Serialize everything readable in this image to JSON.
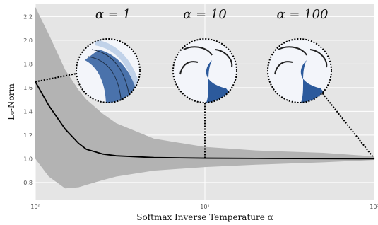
{
  "chart_data": {
    "type": "line",
    "x_label": "Softmax Inverse Temperature α",
    "y_label": "L₀-Norm",
    "annotations": [
      "α = 1",
      "α = 10",
      "α = 100"
    ],
    "x": [
      1,
      1.2,
      1.5,
      1.8,
      2,
      2.5,
      3,
      5,
      10,
      20,
      50,
      100
    ],
    "values": [
      1.65,
      1.45,
      1.25,
      1.13,
      1.08,
      1.04,
      1.025,
      1.01,
      1.005,
      1.003,
      1.001,
      1.0
    ],
    "band_upper": [
      2.28,
      2.05,
      1.75,
      1.58,
      1.5,
      1.38,
      1.3,
      1.17,
      1.1,
      1.07,
      1.05,
      1.02
    ],
    "band_lower": [
      1.0,
      0.85,
      0.75,
      0.76,
      0.78,
      0.82,
      0.85,
      0.9,
      0.93,
      0.95,
      0.97,
      0.99
    ],
    "color": "#000000",
    "band_color": "#b3b3b3",
    "xscale": "log",
    "xlim": [
      1,
      100
    ],
    "xticks": [
      {
        "value": 1,
        "label": "10⁰"
      },
      {
        "value": 10,
        "label": "10¹"
      },
      {
        "value": 100,
        "label": "10²"
      }
    ],
    "ylim": [
      0.65,
      2.31
    ],
    "yticks": [
      {
        "value": 0.8,
        "label": "0,8"
      },
      {
        "value": 1.0,
        "label": "1,0"
      },
      {
        "value": 1.2,
        "label": "1,2"
      },
      {
        "value": 1.4,
        "label": "1,4"
      },
      {
        "value": 1.6,
        "label": "1,6"
      },
      {
        "value": 1.8,
        "label": "1,8"
      },
      {
        "value": 2.0,
        "label": "2,0"
      },
      {
        "value": 2.2,
        "label": "2,2"
      }
    ],
    "grid": true
  }
}
